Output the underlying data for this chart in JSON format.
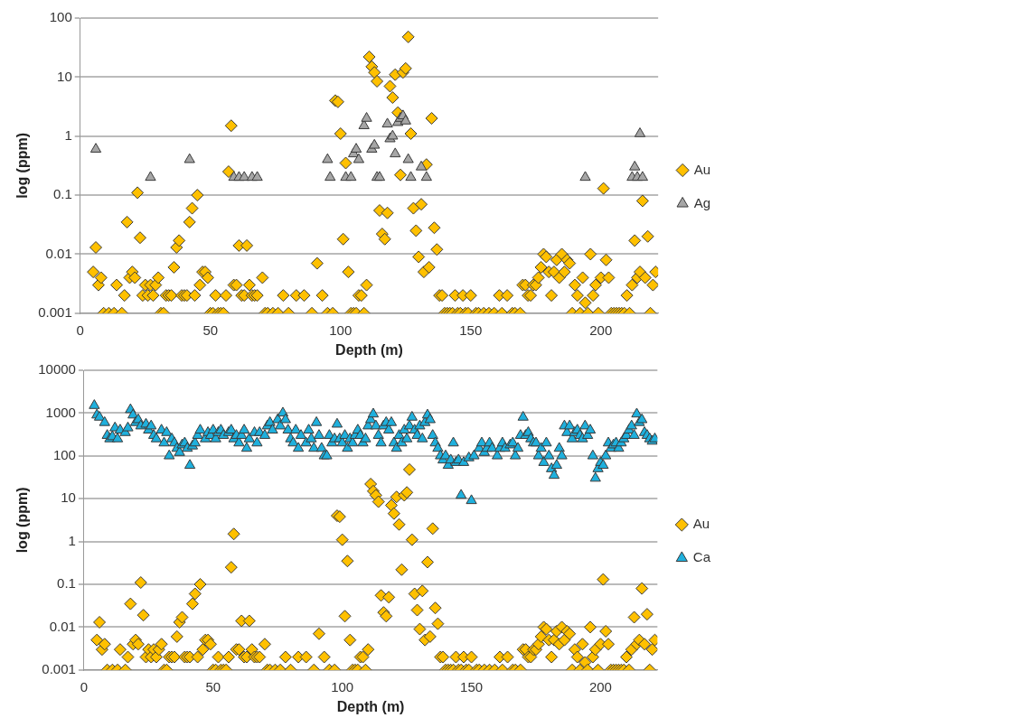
{
  "chart_data": [
    {
      "type": "scatter",
      "xlabel": "Depth (m)",
      "ylabel": "log (ppm)",
      "xlim": [
        0,
        222
      ],
      "xticks": [
        0,
        50,
        100,
        150,
        200
      ],
      "ylim": [
        0.001,
        100
      ],
      "yticks": [
        0.001,
        0.01,
        0.1,
        1,
        10,
        100
      ],
      "log": "y",
      "grid": "y",
      "legend": "right",
      "series": [
        {
          "name": "Au",
          "color": "#ffc000",
          "marker": "diamond",
          "x": [
            5,
            6,
            7,
            8,
            9,
            11,
            13,
            14,
            16,
            17,
            18,
            19,
            20,
            21,
            22,
            23,
            24,
            25,
            26,
            27,
            28,
            29,
            30,
            31,
            32,
            33,
            34,
            35,
            36,
            37,
            38,
            39,
            40,
            41,
            42,
            43,
            44,
            45,
            46,
            47,
            48,
            49,
            50,
            51,
            52,
            53,
            54,
            55,
            56,
            57,
            58,
            59,
            60,
            61,
            62,
            63,
            64,
            65,
            66,
            67,
            68,
            70,
            71,
            72,
            74,
            76,
            78,
            80,
            83,
            86,
            89,
            91,
            93,
            95,
            97,
            98,
            99,
            100,
            101,
            102,
            103,
            104,
            105,
            106,
            107,
            108,
            109,
            110,
            111,
            112,
            113,
            114,
            115,
            116,
            117,
            118,
            119,
            120,
            121,
            122,
            123,
            124,
            125,
            126,
            127,
            128,
            129,
            130,
            131,
            132,
            133,
            134,
            135,
            136,
            137,
            138,
            139,
            140,
            141,
            142,
            143,
            144,
            145,
            146,
            147,
            148,
            149,
            150,
            152,
            153,
            155,
            157,
            159,
            161,
            162,
            164,
            166,
            167,
            169,
            170,
            171,
            172,
            173,
            174,
            175,
            176,
            177,
            178,
            179,
            180,
            181,
            182,
            183,
            184,
            185,
            186,
            187,
            188,
            189,
            190,
            191,
            192,
            193,
            194,
            195,
            196,
            197,
            198,
            199,
            200,
            201,
            202,
            203,
            204,
            205,
            206,
            207,
            208,
            209,
            210,
            211,
            212,
            213,
            214,
            215,
            216,
            217,
            218,
            219,
            220,
            221
          ],
          "values": [
            0.005,
            0.013,
            0.003,
            0.004,
            0.001,
            0.001,
            0.001,
            0.003,
            0.001,
            0.002,
            0.035,
            0.004,
            0.005,
            0.004,
            0.11,
            0.019,
            0.002,
            0.003,
            0.002,
            0.003,
            0.002,
            0.003,
            0.004,
            0.001,
            0.001,
            0.002,
            0.002,
            0.002,
            0.006,
            0.013,
            0.017,
            0.002,
            0.002,
            0.002,
            0.035,
            0.06,
            0.002,
            0.1,
            0.003,
            0.005,
            0.005,
            0.004,
            0.001,
            0.001,
            0.002,
            0.001,
            0.001,
            0.001,
            0.002,
            0.25,
            1.5,
            0.003,
            0.003,
            0.014,
            0.002,
            0.002,
            0.014,
            0.003,
            0.002,
            0.002,
            0.002,
            0.004,
            0.001,
            0.001,
            0.001,
            0.001,
            0.002,
            0.001,
            0.002,
            0.002,
            0.001,
            0.007,
            0.002,
            0.001,
            0.001,
            4,
            3.8,
            1.1,
            0.018,
            0.35,
            0.005,
            0.001,
            0.001,
            0.001,
            0.002,
            0.002,
            0.001,
            0.003,
            22,
            15,
            12,
            8.5,
            0.055,
            0.022,
            0.018,
            0.05,
            7,
            4.5,
            11,
            2.5,
            0.22,
            12,
            14,
            48,
            1.1,
            0.06,
            0.025,
            0.009,
            0.07,
            0.005,
            0.33,
            0.006,
            2,
            0.028,
            0.012,
            0.002,
            0.002,
            0.001,
            0.001,
            0.001,
            0.001,
            0.002,
            0.001,
            0.001,
            0.002,
            0.001,
            0.001,
            0.002,
            0.001,
            0.001,
            0.001,
            0.001,
            0.001,
            0.002,
            0.001,
            0.002,
            0.001,
            0.001,
            0.001,
            0.003,
            0.003,
            0.002,
            0.002,
            0.003,
            0.003,
            0.004,
            0.006,
            0.01,
            0.009,
            0.005,
            0.002,
            0.005,
            0.008,
            0.004,
            0.01,
            0.005,
            0.008,
            0.007,
            0.001,
            0.003,
            0.002,
            0.001,
            0.004,
            0.0015,
            0.001,
            0.01,
            0.002,
            0.003,
            0.001,
            0.004,
            0.13,
            0.008,
            0.004,
            0.001,
            0.001,
            0.001,
            0.001,
            0.001,
            0.001,
            0.002,
            0.001,
            0.003,
            0.017,
            0.004,
            0.005,
            0.08,
            0.004,
            0.02,
            0.001,
            0.003,
            0.005
          ]
        },
        {
          "name": "Ag",
          "color": "#a6a6a6",
          "marker": "triangle",
          "x": [
            6,
            27,
            42,
            59,
            61,
            63,
            66,
            68,
            95,
            96,
            102,
            104,
            105,
            106,
            107,
            109,
            110,
            112,
            113,
            114,
            115,
            118,
            119,
            120,
            121,
            122,
            123,
            124,
            125,
            126,
            127,
            131,
            133,
            194,
            212,
            213,
            214,
            215,
            216
          ],
          "values": [
            0.6,
            0.2,
            0.4,
            0.2,
            0.2,
            0.2,
            0.2,
            0.2,
            0.4,
            0.2,
            0.2,
            0.2,
            0.5,
            0.6,
            0.4,
            1.5,
            2,
            0.6,
            0.7,
            0.2,
            0.2,
            1.6,
            0.9,
            1,
            0.5,
            1.7,
            2,
            2.2,
            1.8,
            0.4,
            0.2,
            0.3,
            0.2,
            0.2,
            0.2,
            0.3,
            0.2,
            1.1,
            0.2
          ]
        }
      ]
    },
    {
      "type": "scatter",
      "xlabel": "Depth (m)",
      "ylabel": "log (ppm)",
      "xlim": [
        0,
        222
      ],
      "xticks": [
        0,
        50,
        100,
        150,
        200
      ],
      "ylim": [
        0.001,
        10000
      ],
      "yticks": [
        0.001,
        0.01,
        0.1,
        1,
        10,
        100,
        1000,
        10000
      ],
      "log": "y",
      "grid": "y",
      "legend": "right",
      "series": [
        {
          "name": "Au",
          "color": "#ffc000",
          "marker": "diamond",
          "x": [
            5,
            6,
            7,
            8,
            9,
            11,
            13,
            14,
            16,
            17,
            18,
            19,
            20,
            21,
            22,
            23,
            24,
            25,
            26,
            27,
            28,
            29,
            30,
            31,
            32,
            33,
            34,
            35,
            36,
            37,
            38,
            39,
            40,
            41,
            42,
            43,
            44,
            45,
            46,
            47,
            48,
            49,
            50,
            51,
            52,
            53,
            54,
            55,
            56,
            57,
            58,
            59,
            60,
            61,
            62,
            63,
            64,
            65,
            66,
            67,
            68,
            70,
            71,
            72,
            74,
            76,
            78,
            80,
            83,
            86,
            89,
            91,
            93,
            95,
            97,
            98,
            99,
            100,
            101,
            102,
            103,
            104,
            105,
            106,
            107,
            108,
            109,
            110,
            111,
            112,
            113,
            114,
            115,
            116,
            117,
            118,
            119,
            120,
            121,
            122,
            123,
            124,
            125,
            126,
            127,
            128,
            129,
            130,
            131,
            132,
            133,
            134,
            135,
            136,
            137,
            138,
            139,
            140,
            141,
            142,
            143,
            144,
            145,
            146,
            147,
            148,
            149,
            150,
            152,
            153,
            155,
            157,
            159,
            161,
            162,
            164,
            166,
            167,
            169,
            170,
            171,
            172,
            173,
            174,
            175,
            176,
            177,
            178,
            179,
            180,
            181,
            182,
            183,
            184,
            185,
            186,
            187,
            188,
            189,
            190,
            191,
            192,
            193,
            194,
            195,
            196,
            197,
            198,
            199,
            200,
            201,
            202,
            203,
            204,
            205,
            206,
            207,
            208,
            209,
            210,
            211,
            212,
            213,
            214,
            215,
            216,
            217,
            218,
            219,
            220,
            221
          ],
          "values": [
            0.005,
            0.013,
            0.003,
            0.004,
            0.001,
            0.001,
            0.001,
            0.003,
            0.001,
            0.002,
            0.035,
            0.004,
            0.005,
            0.004,
            0.11,
            0.019,
            0.002,
            0.003,
            0.002,
            0.003,
            0.002,
            0.003,
            0.004,
            0.001,
            0.001,
            0.002,
            0.002,
            0.002,
            0.006,
            0.013,
            0.017,
            0.002,
            0.002,
            0.002,
            0.035,
            0.06,
            0.002,
            0.1,
            0.003,
            0.005,
            0.005,
            0.004,
            0.001,
            0.001,
            0.002,
            0.001,
            0.001,
            0.001,
            0.002,
            0.25,
            1.5,
            0.003,
            0.003,
            0.014,
            0.002,
            0.002,
            0.014,
            0.003,
            0.002,
            0.002,
            0.002,
            0.004,
            0.001,
            0.001,
            0.001,
            0.001,
            0.002,
            0.001,
            0.002,
            0.002,
            0.001,
            0.007,
            0.002,
            0.001,
            0.001,
            4,
            3.8,
            1.1,
            0.018,
            0.35,
            0.005,
            0.001,
            0.001,
            0.001,
            0.002,
            0.002,
            0.001,
            0.003,
            22,
            15,
            12,
            8.5,
            0.055,
            0.022,
            0.018,
            0.05,
            7,
            4.5,
            11,
            2.5,
            0.22,
            12,
            14,
            48,
            1.1,
            0.06,
            0.025,
            0.009,
            0.07,
            0.005,
            0.33,
            0.006,
            2,
            0.028,
            0.012,
            0.002,
            0.002,
            0.001,
            0.001,
            0.001,
            0.001,
            0.002,
            0.001,
            0.001,
            0.002,
            0.001,
            0.001,
            0.002,
            0.001,
            0.001,
            0.001,
            0.001,
            0.001,
            0.002,
            0.001,
            0.002,
            0.001,
            0.001,
            0.001,
            0.003,
            0.003,
            0.002,
            0.002,
            0.003,
            0.003,
            0.004,
            0.006,
            0.01,
            0.009,
            0.005,
            0.002,
            0.005,
            0.008,
            0.004,
            0.01,
            0.005,
            0.008,
            0.007,
            0.001,
            0.003,
            0.002,
            0.001,
            0.004,
            0.0015,
            0.001,
            0.01,
            0.002,
            0.003,
            0.001,
            0.004,
            0.13,
            0.008,
            0.004,
            0.001,
            0.001,
            0.001,
            0.001,
            0.001,
            0.001,
            0.002,
            0.001,
            0.003,
            0.017,
            0.004,
            0.005,
            0.08,
            0.004,
            0.02,
            0.001,
            0.003,
            0.005
          ]
        },
        {
          "name": "Ca",
          "color": "#1fb0dd",
          "marker": "triangle",
          "x": [
            4,
            5,
            6,
            8,
            9,
            10,
            11,
            12,
            13,
            14,
            16,
            17,
            18,
            19,
            20,
            21,
            22,
            24,
            25,
            26,
            27,
            28,
            30,
            31,
            32,
            33,
            34,
            35,
            36,
            37,
            38,
            39,
            40,
            41,
            42,
            43,
            44,
            45,
            47,
            48,
            49,
            50,
            51,
            52,
            53,
            54,
            56,
            57,
            58,
            59,
            60,
            61,
            62,
            63,
            64,
            66,
            67,
            68,
            70,
            71,
            72,
            73,
            75,
            76,
            77,
            78,
            79,
            80,
            81,
            82,
            83,
            84,
            86,
            87,
            88,
            89,
            90,
            91,
            92,
            93,
            94,
            95,
            96,
            97,
            98,
            99,
            100,
            101,
            102,
            103,
            104,
            105,
            106,
            107,
            108,
            109,
            110,
            111,
            112,
            113,
            114,
            115,
            116,
            117,
            118,
            119,
            120,
            121,
            122,
            123,
            124,
            125,
            126,
            127,
            128,
            129,
            130,
            131,
            132,
            133,
            134,
            135,
            136,
            137,
            138,
            139,
            140,
            141,
            142,
            143,
            144,
            145,
            146,
            147,
            149,
            150,
            151,
            153,
            154,
            155,
            156,
            157,
            158,
            160,
            161,
            162,
            163,
            165,
            166,
            167,
            168,
            169,
            170,
            171,
            172,
            173,
            174,
            175,
            176,
            177,
            178,
            179,
            180,
            181,
            182,
            183,
            184,
            185,
            186,
            187,
            188,
            189,
            190,
            191,
            192,
            193,
            194,
            195,
            196,
            197,
            198,
            199,
            200,
            201,
            202,
            203,
            204,
            205,
            206,
            207,
            208,
            209,
            210,
            211,
            212,
            213,
            214,
            215,
            216,
            217,
            218,
            219,
            220,
            221
          ],
          "values": [
            1500,
            900,
            800,
            600,
            300,
            250,
            280,
            450,
            250,
            400,
            350,
            450,
            1200,
            900,
            600,
            700,
            500,
            550,
            400,
            500,
            300,
            250,
            400,
            200,
            350,
            100,
            250,
            200,
            150,
            120,
            180,
            200,
            150,
            60,
            170,
            200,
            300,
            400,
            250,
            350,
            300,
            400,
            250,
            350,
            400,
            300,
            350,
            400,
            250,
            300,
            200,
            300,
            400,
            150,
            250,
            350,
            200,
            350,
            300,
            500,
            600,
            400,
            700,
            500,
            1000,
            700,
            400,
            250,
            200,
            400,
            150,
            300,
            200,
            400,
            250,
            150,
            600,
            300,
            150,
            100,
            100,
            300,
            200,
            250,
            550,
            250,
            200,
            300,
            150,
            250,
            200,
            300,
            400,
            300,
            200,
            250,
            500,
            700,
            950,
            500,
            300,
            200,
            500,
            600,
            400,
            600,
            200,
            150,
            300,
            200,
            400,
            250,
            500,
            800,
            400,
            300,
            500,
            250,
            600,
            900,
            700,
            300,
            200,
            150,
            100,
            80,
            100,
            60,
            80,
            200,
            70,
            80,
            12,
            70,
            90,
            9,
            100,
            150,
            200,
            120,
            150,
            200,
            150,
            100,
            150,
            200,
            150,
            180,
            200,
            100,
            150,
            300,
            800,
            300,
            350,
            250,
            200,
            200,
            100,
            150,
            70,
            200,
            100,
            50,
            35,
            60,
            150,
            100,
            500,
            350,
            500,
            250,
            350,
            400,
            300,
            250,
            500,
            300,
            400,
            100,
            30,
            50,
            70,
            60,
            100,
            200,
            150,
            180,
            200,
            150,
            200,
            250,
            300,
            400,
            500,
            300,
            950,
            600,
            700,
            350,
            300,
            250,
            220,
            250
          ]
        }
      ]
    }
  ]
}
